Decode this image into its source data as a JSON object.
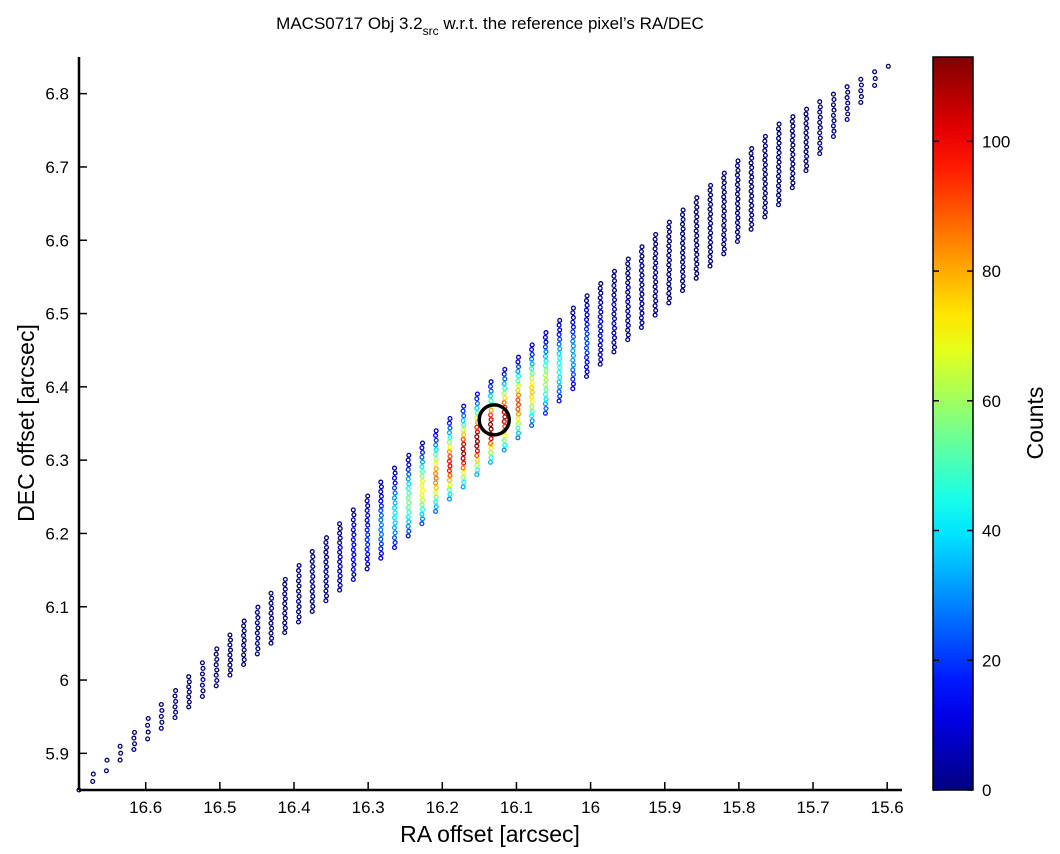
{
  "chart_data": {
    "type": "scatter",
    "title": {
      "prefix": "MACS0717 Obj 3.2",
      "subscript": "src",
      "suffix": " w.r.t. the reference pixel’s RA/DEC"
    },
    "xlabel": "RA offset [arcsec]",
    "ylabel": "DEC offset [arcsec]",
    "xlim": [
      16.69,
      15.58
    ],
    "ylim": [
      5.85,
      6.85
    ],
    "x_reversed": true,
    "x_ticks": [
      16.6,
      16.5,
      16.4,
      16.3,
      16.2,
      16.1,
      16,
      15.9,
      15.8,
      15.7,
      15.6
    ],
    "x_tick_labels": [
      "16.6",
      "16.5",
      "16.4",
      "16.3",
      "16.2",
      "16.1",
      "16",
      "15.9",
      "15.8",
      "15.7",
      "15.6"
    ],
    "y_ticks": [
      5.9,
      6,
      6.1,
      6.2,
      6.3,
      6.4,
      6.5,
      6.6,
      6.7,
      6.8
    ],
    "y_tick_labels": [
      "5.9",
      "6",
      "6.1",
      "6.2",
      "6.3",
      "6.4",
      "6.5",
      "6.6",
      "6.7",
      "6.8"
    ],
    "grid": false,
    "colorbar": {
      "label": "Counts",
      "range": [
        0,
        113
      ],
      "ticks": [
        0,
        20,
        40,
        60,
        80,
        100
      ],
      "tick_labels": [
        "0",
        "20",
        "40",
        "60",
        "80",
        "100"
      ],
      "colormap": "jet"
    },
    "distribution": {
      "description": "points lie in a diagonal band running from lower-left to upper-right; counts peak near the marked position",
      "start": [
        16.69,
        5.85
      ],
      "end": [
        15.59,
        6.845
      ],
      "peak": [
        16.15,
        6.33
      ],
      "peak_counts": 113,
      "row_spacing_ra": 0.0185,
      "band_half_width_dec": 0.055
    },
    "marker": {
      "shape": "circle",
      "ra": 16.13,
      "dec": 6.355,
      "color": "#000000"
    }
  }
}
